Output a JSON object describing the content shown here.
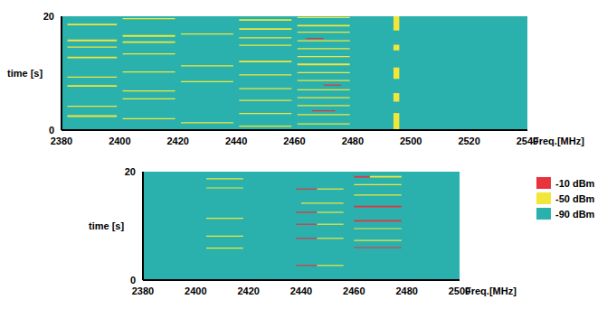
{
  "chart_data": [
    {
      "type": "heatmap",
      "x_label": "Freq.[MHz]",
      "y_label": "time [s]",
      "xlim": [
        2380,
        2540
      ],
      "xticks": [
        2380,
        2400,
        2420,
        2440,
        2460,
        2480,
        2500,
        2520,
        2540
      ],
      "ylim": [
        0,
        20
      ],
      "yticks": [
        0,
        20
      ],
      "grid": false,
      "background_level": -90,
      "segments": [
        {
          "f": [
            2382,
            2399
          ],
          "t": [
            18.4,
            18.7
          ],
          "level": -50
        },
        {
          "f": [
            2382,
            2399
          ],
          "t": [
            15.6,
            15.9
          ],
          "level": -50
        },
        {
          "f": [
            2382,
            2399
          ],
          "t": [
            14.5,
            14.7
          ],
          "level": -50
        },
        {
          "f": [
            2382,
            2399
          ],
          "t": [
            12.6,
            12.9
          ],
          "level": -50
        },
        {
          "f": [
            2382,
            2399
          ],
          "t": [
            9.2,
            9.4
          ],
          "level": -50
        },
        {
          "f": [
            2382,
            2399
          ],
          "t": [
            7.6,
            7.9
          ],
          "level": -50
        },
        {
          "f": [
            2382,
            2399
          ],
          "t": [
            4.1,
            4.3
          ],
          "level": -50
        },
        {
          "f": [
            2382,
            2399
          ],
          "t": [
            2.3,
            2.6
          ],
          "level": -50
        },
        {
          "f": [
            2401,
            2419
          ],
          "t": [
            19.5,
            19.7
          ],
          "level": -50
        },
        {
          "f": [
            2401,
            2419
          ],
          "t": [
            16.4,
            16.7
          ],
          "level": -50
        },
        {
          "f": [
            2401,
            2419
          ],
          "t": [
            15.3,
            15.6
          ],
          "level": -50
        },
        {
          "f": [
            2401,
            2419
          ],
          "t": [
            13.3,
            13.5
          ],
          "level": -50
        },
        {
          "f": [
            2401,
            2419
          ],
          "t": [
            10.1,
            10.3
          ],
          "level": -50
        },
        {
          "f": [
            2401,
            2419
          ],
          "t": [
            6.8,
            7.0
          ],
          "level": -50
        },
        {
          "f": [
            2401,
            2419
          ],
          "t": [
            5.4,
            5.6
          ],
          "level": -50
        },
        {
          "f": [
            2401,
            2419
          ],
          "t": [
            1.9,
            2.1
          ],
          "level": -50
        },
        {
          "f": [
            2421,
            2439
          ],
          "t": [
            16.8,
            17.0
          ],
          "level": -50
        },
        {
          "f": [
            2421,
            2439
          ],
          "t": [
            11.2,
            11.4
          ],
          "level": -50
        },
        {
          "f": [
            2421,
            2439
          ],
          "t": [
            8.4,
            8.6
          ],
          "level": -50
        },
        {
          "f": [
            2421,
            2439
          ],
          "t": [
            1.2,
            1.4
          ],
          "level": -50
        },
        {
          "f": [
            2441,
            2459
          ],
          "t": [
            19.2,
            19.5
          ],
          "level": -50
        },
        {
          "f": [
            2441,
            2459
          ],
          "t": [
            17.6,
            17.9
          ],
          "level": -50
        },
        {
          "f": [
            2441,
            2459
          ],
          "t": [
            16.1,
            16.3
          ],
          "level": -50
        },
        {
          "f": [
            2441,
            2459
          ],
          "t": [
            14.8,
            15.0
          ],
          "level": -50
        },
        {
          "f": [
            2441,
            2459
          ],
          "t": [
            11.9,
            12.2
          ],
          "level": -50
        },
        {
          "f": [
            2441,
            2459
          ],
          "t": [
            9.6,
            9.8
          ],
          "level": -50
        },
        {
          "f": [
            2441,
            2459
          ],
          "t": [
            7.2,
            7.4
          ],
          "level": -50
        },
        {
          "f": [
            2441,
            2459
          ],
          "t": [
            5.1,
            5.3
          ],
          "level": -50
        },
        {
          "f": [
            2441,
            2459
          ],
          "t": [
            2.8,
            3.0
          ],
          "level": -50
        },
        {
          "f": [
            2441,
            2459
          ],
          "t": [
            0.6,
            0.8
          ],
          "level": -50
        },
        {
          "f": [
            2461,
            2479
          ],
          "t": [
            19.7,
            19.9
          ],
          "level": -50
        },
        {
          "f": [
            2461,
            2479
          ],
          "t": [
            18.2,
            18.5
          ],
          "level": -50
        },
        {
          "f": [
            2461,
            2479
          ],
          "t": [
            17.1,
            17.3
          ],
          "level": -50
        },
        {
          "f": [
            2461,
            2479
          ],
          "t": [
            15.6,
            15.8
          ],
          "level": -50
        },
        {
          "f": [
            2461,
            2479
          ],
          "t": [
            14.2,
            14.4
          ],
          "level": -50
        },
        {
          "f": [
            2461,
            2479
          ],
          "t": [
            12.8,
            13.0
          ],
          "level": -50
        },
        {
          "f": [
            2461,
            2479
          ],
          "t": [
            11.4,
            11.7
          ],
          "level": -50
        },
        {
          "f": [
            2461,
            2479
          ],
          "t": [
            10.0,
            10.2
          ],
          "level": -50
        },
        {
          "f": [
            2461,
            2479
          ],
          "t": [
            8.6,
            8.8
          ],
          "level": -50
        },
        {
          "f": [
            2461,
            2479
          ],
          "t": [
            7.0,
            7.2
          ],
          "level": -50
        },
        {
          "f": [
            2461,
            2479
          ],
          "t": [
            5.6,
            5.8
          ],
          "level": -50
        },
        {
          "f": [
            2461,
            2479
          ],
          "t": [
            4.2,
            4.4
          ],
          "level": -50
        },
        {
          "f": [
            2461,
            2479
          ],
          "t": [
            2.6,
            2.8
          ],
          "level": -50
        },
        {
          "f": [
            2461,
            2479
          ],
          "t": [
            1.0,
            1.2
          ],
          "level": -50
        },
        {
          "f": [
            2464,
            2470
          ],
          "t": [
            16.0,
            16.2
          ],
          "level": -10
        },
        {
          "f": [
            2470,
            2476
          ],
          "t": [
            7.8,
            8.0
          ],
          "level": -10
        },
        {
          "f": [
            2466,
            2474
          ],
          "t": [
            3.3,
            3.5
          ],
          "level": -10
        },
        {
          "f": [
            2494,
            2496
          ],
          "t": [
            0,
            3
          ],
          "level": -50
        },
        {
          "f": [
            2494,
            2496
          ],
          "t": [
            5,
            6.5
          ],
          "level": -50
        },
        {
          "f": [
            2494,
            2496
          ],
          "t": [
            9,
            11
          ],
          "level": -50
        },
        {
          "f": [
            2494,
            2496
          ],
          "t": [
            14,
            15
          ],
          "level": -50
        },
        {
          "f": [
            2494,
            2496
          ],
          "t": [
            17.5,
            20
          ],
          "level": -50
        }
      ]
    },
    {
      "type": "heatmap",
      "x_label": "Freq.[MHz]",
      "y_label": "time [s]",
      "xlim": [
        2380,
        2500
      ],
      "xticks": [
        2380,
        2400,
        2420,
        2440,
        2460,
        2480,
        2500
      ],
      "ylim": [
        0,
        20
      ],
      "yticks": [
        0,
        20
      ],
      "grid": false,
      "background_level": -90,
      "segments": [
        {
          "f": [
            2404,
            2418
          ],
          "t": [
            18.6,
            18.8
          ],
          "level": -50
        },
        {
          "f": [
            2404,
            2418
          ],
          "t": [
            16.9,
            17.1
          ],
          "level": -50
        },
        {
          "f": [
            2404,
            2418
          ],
          "t": [
            11.3,
            11.5
          ],
          "level": -50
        },
        {
          "f": [
            2404,
            2418
          ],
          "t": [
            8.0,
            8.2
          ],
          "level": -50
        },
        {
          "f": [
            2404,
            2418
          ],
          "t": [
            5.8,
            6.0
          ],
          "level": -50
        },
        {
          "f": [
            2438,
            2446
          ],
          "t": [
            16.7,
            16.9
          ],
          "level": -10
        },
        {
          "f": [
            2446,
            2456
          ],
          "t": [
            16.7,
            16.9
          ],
          "level": -50
        },
        {
          "f": [
            2440,
            2456
          ],
          "t": [
            14.1,
            14.3
          ],
          "level": -50
        },
        {
          "f": [
            2438,
            2446
          ],
          "t": [
            12.4,
            12.6
          ],
          "level": -10
        },
        {
          "f": [
            2446,
            2456
          ],
          "t": [
            12.4,
            12.6
          ],
          "level": -50
        },
        {
          "f": [
            2438,
            2446
          ],
          "t": [
            10.2,
            10.4
          ],
          "level": -10
        },
        {
          "f": [
            2446,
            2456
          ],
          "t": [
            10.2,
            10.4
          ],
          "level": -50
        },
        {
          "f": [
            2438,
            2446
          ],
          "t": [
            7.6,
            7.8
          ],
          "level": -10
        },
        {
          "f": [
            2446,
            2456
          ],
          "t": [
            7.6,
            7.8
          ],
          "level": -50
        },
        {
          "f": [
            2438,
            2446
          ],
          "t": [
            2.6,
            2.8
          ],
          "level": -10
        },
        {
          "f": [
            2446,
            2456
          ],
          "t": [
            2.6,
            2.8
          ],
          "level": -50
        },
        {
          "f": [
            2460,
            2466
          ],
          "t": [
            18.9,
            19.2
          ],
          "level": -10
        },
        {
          "f": [
            2466,
            2478
          ],
          "t": [
            18.9,
            19.2
          ],
          "level": -50
        },
        {
          "f": [
            2460,
            2478
          ],
          "t": [
            17.5,
            17.7
          ],
          "level": -50
        },
        {
          "f": [
            2460,
            2478
          ],
          "t": [
            15.6,
            15.8
          ],
          "level": -50
        },
        {
          "f": [
            2460,
            2478
          ],
          "t": [
            13.4,
            13.7
          ],
          "level": -10
        },
        {
          "f": [
            2460,
            2478
          ],
          "t": [
            10.8,
            11.1
          ],
          "level": -10
        },
        {
          "f": [
            2460,
            2478
          ],
          "t": [
            9.4,
            9.6
          ],
          "level": -50
        },
        {
          "f": [
            2460,
            2478
          ],
          "t": [
            7.2,
            7.4
          ],
          "level": -50
        },
        {
          "f": [
            2460,
            2478
          ],
          "t": [
            5.9,
            6.1
          ],
          "level": -10
        }
      ],
      "colorbar": {
        "ticks": [
          {
            "value": -10,
            "label": "-10 dBm"
          },
          {
            "value": -50,
            "label": "-50 dBm"
          },
          {
            "value": -90,
            "label": "-90 dBm"
          }
        ],
        "colors": [
          "#e8323c",
          "#f2e63a",
          "#2ab1ae"
        ]
      }
    }
  ]
}
